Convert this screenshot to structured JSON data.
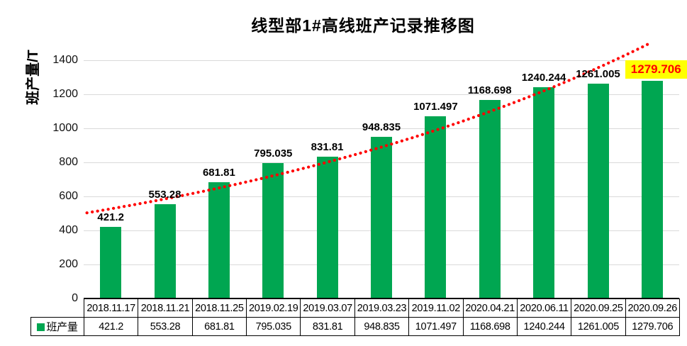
{
  "chart_data": {
    "type": "bar",
    "title": "线型部1#高线班产记录推移图",
    "ylabel": "班产量/T",
    "legend": "班产量",
    "categories": [
      "2018.11.17",
      "2018.11.21",
      "2018.11.25",
      "2019.02.19",
      "2019.03.07",
      "2019.03.23",
      "2019.11.02",
      "2020.04.21",
      "2020.06.11",
      "2020.09.25",
      "2020.09.26"
    ],
    "values": [
      421.2,
      553.28,
      681.81,
      795.035,
      831.81,
      948.835,
      1071.497,
      1168.698,
      1240.244,
      1261.005,
      1279.706
    ],
    "value_labels": [
      "421.2",
      "553.28",
      "681.81",
      "795.035",
      "831.81",
      "948.835",
      "1071.497",
      "1168.698",
      "1240.244",
      "1261.005",
      "1279.706"
    ],
    "yticks": [
      "0",
      "200",
      "400",
      "600",
      "800",
      "1000",
      "1200",
      "1400"
    ],
    "ylim": [
      0,
      1500
    ],
    "grid": true,
    "legend_position": "bottom-table",
    "trendline": {
      "type": "exponential",
      "style": "dotted",
      "color": "#FF0000"
    },
    "highlight": {
      "index": 10,
      "background": "#FFFF00",
      "color": "#FF0000"
    },
    "colors": {
      "bar": "#00A651",
      "grid": "#D9D9D9",
      "table_border": "#000000",
      "text": "#000000"
    }
  }
}
